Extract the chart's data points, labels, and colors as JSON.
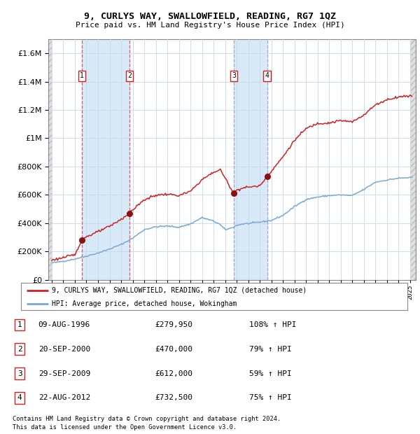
{
  "title": "9, CURLYS WAY, SWALLOWFIELD, READING, RG7 1QZ",
  "subtitle": "Price paid vs. HM Land Registry's House Price Index (HPI)",
  "legend_line1": "9, CURLYS WAY, SWALLOWFIELD, READING, RG7 1QZ (detached house)",
  "legend_line2": "HPI: Average price, detached house, Wokingham",
  "footer1": "Contains HM Land Registry data © Crown copyright and database right 2024.",
  "footer2": "This data is licensed under the Open Government Licence v3.0.",
  "purchases": [
    {
      "num": 1,
      "date": "09-AUG-1996",
      "price": 279950,
      "pct": "108%",
      "year": 1996.61
    },
    {
      "num": 2,
      "date": "20-SEP-2000",
      "price": 470000,
      "pct": "79%",
      "year": 2000.72
    },
    {
      "num": 3,
      "date": "29-SEP-2009",
      "price": 612000,
      "pct": "59%",
      "year": 2009.75
    },
    {
      "num": 4,
      "date": "22-AUG-2012",
      "price": 732500,
      "pct": "75%",
      "year": 2012.64
    }
  ],
  "hpi_color": "#7aa8d2",
  "price_color": "#cc2222",
  "dot_color": "#881111",
  "background_color": "#ffffff",
  "grid_color": "#c8d8e8",
  "shade_color": "#d8eaf8",
  "hatch_color": "#d0d0d0",
  "ylim": [
    0,
    1700000
  ],
  "yticks": [
    0,
    200000,
    400000,
    600000,
    800000,
    1000000,
    1200000,
    1400000,
    1600000
  ],
  "xlim_start": 1993.7,
  "xlim_end": 2025.5,
  "hpi_series": {
    "key_x": [
      1994.0,
      1995.0,
      1996.0,
      1997.0,
      1998.0,
      1999.0,
      2000.0,
      2001.0,
      2002.0,
      2003.0,
      2004.0,
      2005.0,
      2006.0,
      2007.0,
      2008.0,
      2008.5,
      2009.0,
      2009.5,
      2010.0,
      2010.5,
      2011.0,
      2012.0,
      2013.0,
      2014.0,
      2015.0,
      2016.0,
      2017.0,
      2018.0,
      2019.0,
      2020.0,
      2021.0,
      2022.0,
      2023.0,
      2024.0,
      2025.0
    ],
    "key_y": [
      120000,
      132000,
      148000,
      168000,
      190000,
      218000,
      250000,
      295000,
      355000,
      375000,
      380000,
      372000,
      395000,
      440000,
      415000,
      395000,
      355000,
      365000,
      385000,
      395000,
      398000,
      408000,
      420000,
      455000,
      518000,
      568000,
      585000,
      595000,
      600000,
      595000,
      638000,
      690000,
      705000,
      718000,
      722000
    ]
  },
  "price_series": {
    "key_x": [
      1994.0,
      1995.0,
      1996.0,
      1996.61,
      1997.0,
      1998.0,
      1999.0,
      2000.0,
      2000.72,
      2001.0,
      2002.0,
      2003.0,
      2004.0,
      2005.0,
      2006.0,
      2007.0,
      2008.0,
      2008.6,
      2009.0,
      2009.75,
      2010.0,
      2010.5,
      2011.0,
      2011.5,
      2012.0,
      2012.64,
      2013.0,
      2014.0,
      2015.0,
      2016.0,
      2017.0,
      2018.0,
      2019.0,
      2020.0,
      2021.0,
      2022.0,
      2023.0,
      2024.0,
      2025.0
    ],
    "key_y": [
      140000,
      158000,
      178000,
      279950,
      305000,
      340000,
      378000,
      428000,
      470000,
      495000,
      565000,
      598000,
      605000,
      595000,
      625000,
      708000,
      760000,
      778000,
      718000,
      612000,
      635000,
      648000,
      655000,
      660000,
      663000,
      732500,
      768000,
      868000,
      985000,
      1068000,
      1105000,
      1108000,
      1125000,
      1115000,
      1165000,
      1235000,
      1272000,
      1292000,
      1300000
    ]
  }
}
